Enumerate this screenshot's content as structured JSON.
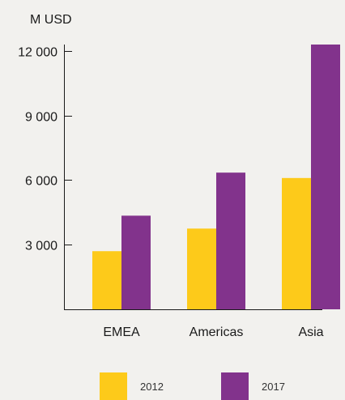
{
  "chart_data": {
    "type": "bar",
    "ylabel": "M USD",
    "categories": [
      "EMEA",
      "Americas",
      "Asia"
    ],
    "series": [
      {
        "name": "2012",
        "values": [
          2700,
          3750,
          6100
        ],
        "color": "#fdca1a"
      },
      {
        "name": "2017",
        "values": [
          4350,
          6350,
          12300
        ],
        "color": "#82338c"
      }
    ],
    "yticks": [
      {
        "value": 3000,
        "label": "3 000"
      },
      {
        "value": 6000,
        "label": "6 000"
      },
      {
        "value": 9000,
        "label": "9 000"
      },
      {
        "value": 12000,
        "label": "12 000"
      }
    ],
    "ylim": [
      0,
      12300
    ],
    "grid": false,
    "legend_position": "bottom"
  }
}
